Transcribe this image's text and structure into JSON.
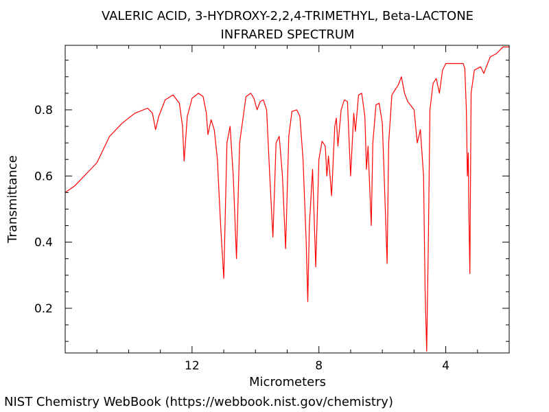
{
  "chart_data": {
    "type": "line",
    "title": "VALERIC ACID, 3-HYDROXY-2,2,4-TRIMETHYL, Beta-LACTONE",
    "subtitle": "INFRARED SPECTRUM",
    "xlabel": "Micrometers",
    "ylabel": "Transmittance",
    "xlim": [
      16.0,
      2.0
    ],
    "ylim": [
      0.065,
      0.995
    ],
    "x_ticks": [
      12,
      8,
      4
    ],
    "x_tick_labels": [
      "12",
      "8",
      "4"
    ],
    "y_ticks": [
      0.2,
      0.4,
      0.6,
      0.8
    ],
    "y_tick_labels": [
      "0.2",
      "0.4",
      "0.6",
      "0.8"
    ],
    "grid": false,
    "series": [
      {
        "color": "#ff0000",
        "points": [
          [
            16.0,
            0.55
          ],
          [
            15.7,
            0.57
          ],
          [
            15.4,
            0.6
          ],
          [
            15.0,
            0.64
          ],
          [
            14.6,
            0.72
          ],
          [
            14.2,
            0.76
          ],
          [
            13.8,
            0.79
          ],
          [
            13.4,
            0.805
          ],
          [
            13.25,
            0.79
          ],
          [
            13.15,
            0.74
          ],
          [
            13.05,
            0.78
          ],
          [
            12.85,
            0.83
          ],
          [
            12.6,
            0.845
          ],
          [
            12.4,
            0.82
          ],
          [
            12.3,
            0.75
          ],
          [
            12.25,
            0.645
          ],
          [
            12.15,
            0.78
          ],
          [
            12.0,
            0.835
          ],
          [
            11.8,
            0.85
          ],
          [
            11.65,
            0.84
          ],
          [
            11.55,
            0.79
          ],
          [
            11.5,
            0.725
          ],
          [
            11.4,
            0.77
          ],
          [
            11.3,
            0.74
          ],
          [
            11.2,
            0.65
          ],
          [
            11.1,
            0.45
          ],
          [
            11.0,
            0.29
          ],
          [
            10.9,
            0.7
          ],
          [
            10.8,
            0.75
          ],
          [
            10.7,
            0.6
          ],
          [
            10.6,
            0.35
          ],
          [
            10.5,
            0.7
          ],
          [
            10.3,
            0.84
          ],
          [
            10.15,
            0.85
          ],
          [
            10.05,
            0.835
          ],
          [
            9.95,
            0.8
          ],
          [
            9.85,
            0.825
          ],
          [
            9.75,
            0.83
          ],
          [
            9.65,
            0.8
          ],
          [
            9.55,
            0.6
          ],
          [
            9.45,
            0.415
          ],
          [
            9.35,
            0.7
          ],
          [
            9.25,
            0.72
          ],
          [
            9.15,
            0.6
          ],
          [
            9.05,
            0.38
          ],
          [
            8.95,
            0.72
          ],
          [
            8.85,
            0.795
          ],
          [
            8.7,
            0.8
          ],
          [
            8.6,
            0.78
          ],
          [
            8.5,
            0.65
          ],
          [
            8.4,
            0.4
          ],
          [
            8.35,
            0.22
          ],
          [
            8.3,
            0.45
          ],
          [
            8.2,
            0.62
          ],
          [
            8.1,
            0.325
          ],
          [
            8.0,
            0.65
          ],
          [
            7.9,
            0.705
          ],
          [
            7.8,
            0.69
          ],
          [
            7.75,
            0.6
          ],
          [
            7.7,
            0.66
          ],
          [
            7.6,
            0.54
          ],
          [
            7.5,
            0.75
          ],
          [
            7.45,
            0.775
          ],
          [
            7.4,
            0.69
          ],
          [
            7.3,
            0.8
          ],
          [
            7.2,
            0.83
          ],
          [
            7.1,
            0.825
          ],
          [
            7.0,
            0.6
          ],
          [
            6.9,
            0.79
          ],
          [
            6.85,
            0.735
          ],
          [
            6.75,
            0.845
          ],
          [
            6.65,
            0.85
          ],
          [
            6.55,
            0.78
          ],
          [
            6.5,
            0.62
          ],
          [
            6.45,
            0.69
          ],
          [
            6.35,
            0.45
          ],
          [
            6.3,
            0.7
          ],
          [
            6.2,
            0.815
          ],
          [
            6.1,
            0.82
          ],
          [
            6.0,
            0.76
          ],
          [
            5.95,
            0.62
          ],
          [
            5.85,
            0.335
          ],
          [
            5.8,
            0.7
          ],
          [
            5.7,
            0.845
          ],
          [
            5.6,
            0.86
          ],
          [
            5.5,
            0.875
          ],
          [
            5.4,
            0.9
          ],
          [
            5.3,
            0.85
          ],
          [
            5.2,
            0.825
          ],
          [
            5.0,
            0.8
          ],
          [
            4.9,
            0.7
          ],
          [
            4.8,
            0.74
          ],
          [
            4.7,
            0.6
          ],
          [
            4.65,
            0.25
          ],
          [
            4.6,
            0.07
          ],
          [
            4.55,
            0.4
          ],
          [
            4.5,
            0.8
          ],
          [
            4.4,
            0.88
          ],
          [
            4.3,
            0.895
          ],
          [
            4.2,
            0.85
          ],
          [
            4.1,
            0.92
          ],
          [
            4.0,
            0.94
          ],
          [
            3.6,
            0.94
          ],
          [
            3.45,
            0.94
          ],
          [
            3.4,
            0.925
          ],
          [
            3.35,
            0.8
          ],
          [
            3.32,
            0.6
          ],
          [
            3.29,
            0.67
          ],
          [
            3.27,
            0.48
          ],
          [
            3.24,
            0.305
          ],
          [
            3.2,
            0.85
          ],
          [
            3.1,
            0.92
          ],
          [
            3.0,
            0.925
          ],
          [
            2.9,
            0.93
          ],
          [
            2.8,
            0.91
          ],
          [
            2.6,
            0.96
          ],
          [
            2.4,
            0.97
          ],
          [
            2.2,
            0.99
          ],
          [
            2.0,
            0.99
          ]
        ]
      }
    ]
  },
  "footer": "NIST Chemistry WebBook (https://webbook.nist.gov/chemistry)"
}
